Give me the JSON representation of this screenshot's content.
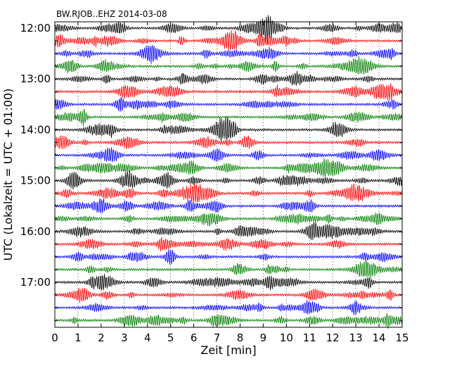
{
  "chart_data": {
    "type": "line",
    "title": "BW.RJOB..EHZ 2014-03-08",
    "xlabel": "Zeit  [min]",
    "ylabel": "UTC (Lokalzeit = UTC + 01:00)",
    "xlim": [
      0,
      15
    ],
    "x_ticks": [
      "0",
      "1",
      "2",
      "3",
      "4",
      "5",
      "6",
      "7",
      "8",
      "9",
      "10",
      "11",
      "12",
      "13",
      "14",
      "15"
    ],
    "y_ticks": [
      "12:00",
      "13:00",
      "14:00",
      "15:00",
      "16:00",
      "17:00"
    ],
    "grid": "vertical dotted lines at each minute",
    "legend": "none",
    "trace_colors": [
      "#000000",
      "#ff0000",
      "#0000ff",
      "#007f00"
    ],
    "traces_per_hour": 4,
    "trace_start_times": [
      "12:00",
      "12:15",
      "12:30",
      "12:45",
      "13:00",
      "13:15",
      "13:30",
      "13:45",
      "14:00",
      "14:15",
      "14:30",
      "14:45",
      "15:00",
      "15:15",
      "15:30",
      "15:45",
      "16:00",
      "16:15",
      "16:30",
      "16:45",
      "17:00",
      "17:15",
      "17:30",
      "17:45"
    ]
  }
}
